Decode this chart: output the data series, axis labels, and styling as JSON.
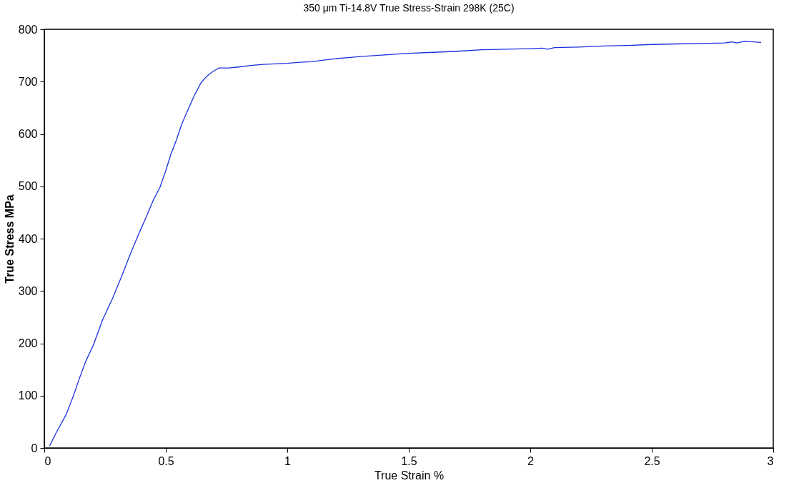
{
  "chart_data": {
    "type": "line",
    "title": "350 μm Ti-14.8V True Stress-Strain  298K (25C)",
    "xlabel": "True Strain %",
    "ylabel": "True  Stress  MPa",
    "series": [
      {
        "color": "#1a2fe0",
        "x": [
          0.022,
          0.05,
          0.09,
          0.12,
          0.146,
          0.17,
          0.203,
          0.24,
          0.282,
          0.32,
          0.35,
          0.385,
          0.418,
          0.45,
          0.475,
          0.5,
          0.52,
          0.545,
          0.565,
          0.59,
          0.62,
          0.645,
          0.668,
          0.69,
          0.718,
          0.76,
          0.8,
          0.85,
          0.9,
          0.95,
          1.0,
          1.05,
          1.1,
          1.15,
          1.2,
          1.25,
          1.3,
          1.4,
          1.5,
          1.6,
          1.7,
          1.8,
          1.9,
          2.0,
          2.05,
          2.07,
          2.1,
          2.2,
          2.3,
          2.4,
          2.5,
          2.6,
          2.7,
          2.8,
          2.83,
          2.85,
          2.88,
          2.92,
          2.95
        ],
        "values": [
          4,
          30,
          64,
          100,
          135,
          165,
          198,
          245,
          287,
          330,
          366,
          405,
          440,
          475,
          497,
          530,
          560,
          590,
          618,
          645,
          676,
          698,
          710,
          718,
          726,
          726,
          728,
          731,
          733,
          734,
          735,
          737,
          738,
          741,
          744,
          746,
          748,
          751,
          754,
          756,
          758,
          761,
          762,
          763,
          764,
          762,
          765,
          766,
          768,
          769,
          771,
          772,
          773,
          774,
          776,
          774,
          777,
          776,
          775
        ]
      }
    ],
    "xlim": [
      0,
      3
    ],
    "xticks": [
      0,
      0.5,
      1,
      1.5,
      2,
      2.5,
      3
    ],
    "ylim": [
      0,
      800
    ],
    "yticks": [
      0,
      100,
      200,
      300,
      400,
      500,
      600,
      700,
      800
    ],
    "grid": false,
    "marker": "none",
    "line_style": "solid"
  }
}
